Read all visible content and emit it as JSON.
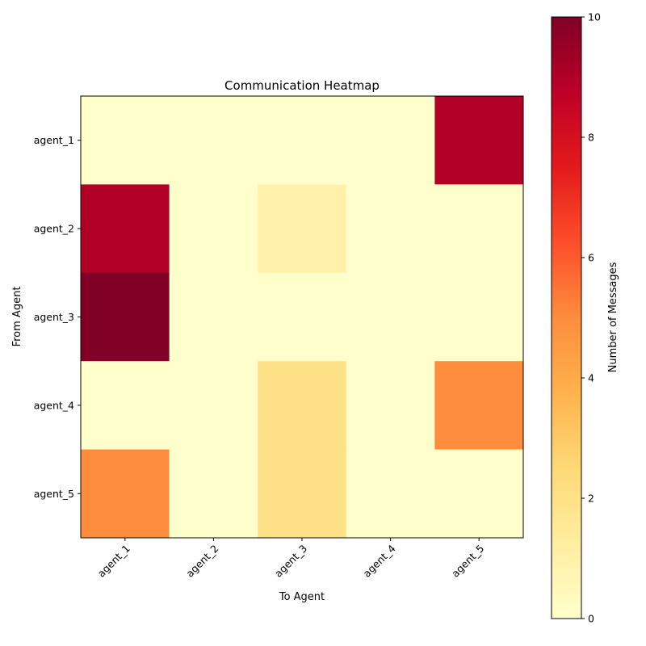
{
  "chart_data": {
    "type": "heatmap",
    "title": "Communication Heatmap",
    "xlabel": "To Agent",
    "ylabel": "From Agent",
    "x_categories": [
      "agent_1",
      "agent_2",
      "agent_3",
      "agent_4",
      "agent_5"
    ],
    "y_categories": [
      "agent_1",
      "agent_2",
      "agent_3",
      "agent_4",
      "agent_5"
    ],
    "values": [
      [
        0,
        0,
        0,
        0,
        9
      ],
      [
        9,
        0,
        1,
        0,
        0
      ],
      [
        10,
        0,
        0,
        0,
        0
      ],
      [
        0,
        0,
        2,
        0,
        5
      ],
      [
        5,
        0,
        2,
        0,
        0
      ]
    ],
    "colormap": "YlOrRd",
    "colorbar": {
      "label": "Number of Messages",
      "range": [
        0,
        10
      ],
      "ticks": [
        "0",
        "2",
        "4",
        "6",
        "8",
        "10"
      ]
    }
  }
}
